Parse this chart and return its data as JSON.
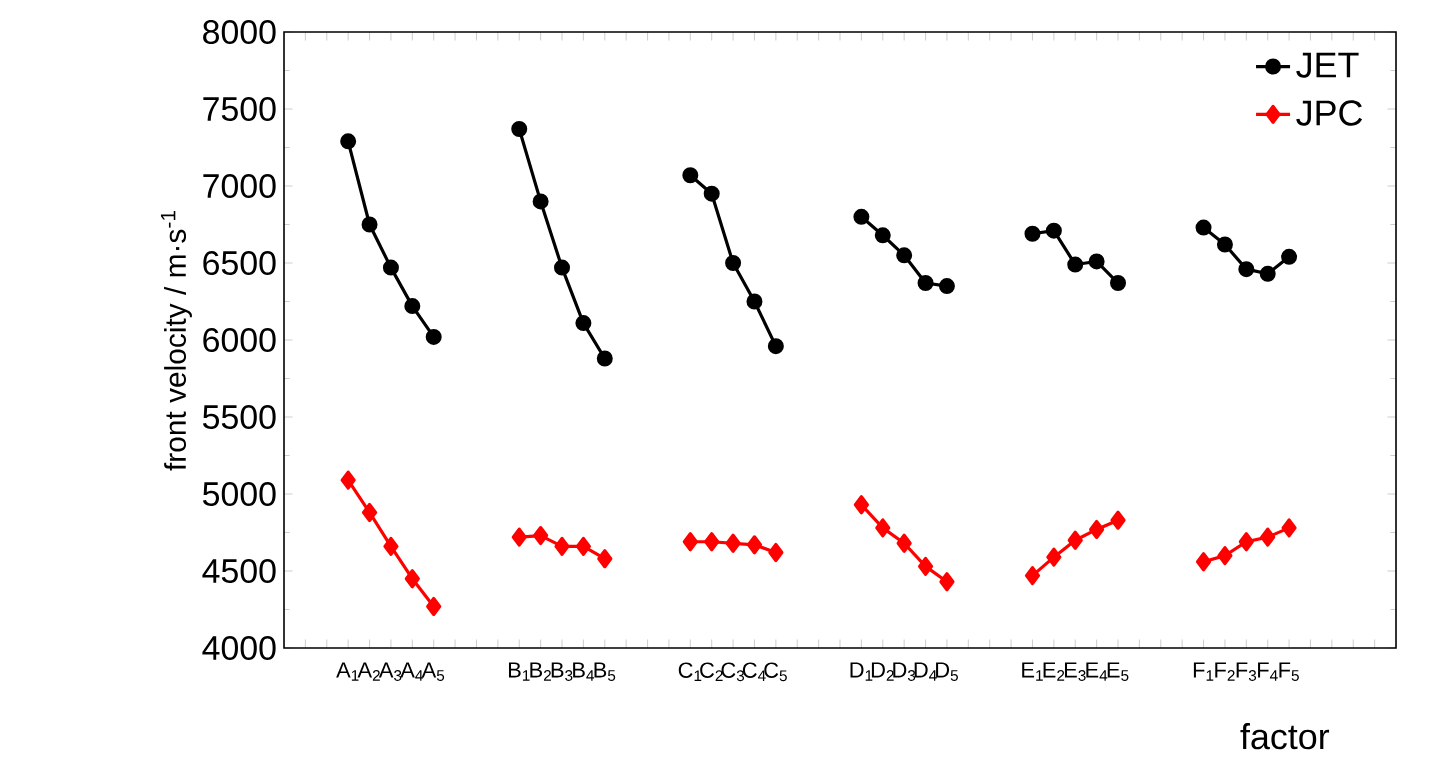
{
  "chart_data": {
    "type": "line",
    "xlabel": "factor",
    "ylabel": "front velocity / m·s$^{-1}$",
    "categories": [
      null,
      null,
      "A$_{1}$",
      "A$_{2}$",
      "A$_{3}$",
      "A$_{4}$",
      "A$_{5}$",
      null,
      null,
      null,
      "B$_{1}$",
      "B$_{2}$",
      "B$_{3}$",
      "B$_{4}$",
      "B$_{5}$",
      null,
      null,
      null,
      "C$_{1}$",
      "C$_{2}$",
      "C$_{3}$",
      "C$_{4}$",
      "C$_{5}$",
      null,
      null,
      null,
      "D$_{1}$",
      "D$_{2}$",
      "D$_{3}$",
      "D$_{4}$",
      "D$_{5}$",
      null,
      null,
      null,
      "E$_{1}$",
      "E$_{2}$",
      "E$_{3}$",
      "E$_{4}$",
      "E$_{5}$",
      null,
      null,
      null,
      "F$_{1}$",
      "F$_{2}$",
      "F$_{3}$",
      "F$_{4}$",
      "F$_{5}$",
      null,
      null,
      null,
      null
    ],
    "ylim": [
      4000,
      8000
    ],
    "yticks": [
      4000,
      4500,
      5000,
      5500,
      6000,
      6500,
      7000,
      7500,
      8000
    ],
    "legend": "top right",
    "grid": false,
    "series": [
      {
        "name": "JET",
        "color": "#000000",
        "marker": "circle",
        "values": [
          null,
          null,
          7290,
          6750,
          6470,
          6220,
          6020,
          null,
          null,
          null,
          7370,
          6900,
          6470,
          6110,
          5880,
          null,
          null,
          null,
          7070,
          6950,
          6500,
          6250,
          5960,
          null,
          null,
          null,
          6800,
          6680,
          6550,
          6370,
          6350,
          null,
          null,
          null,
          6690,
          6710,
          6490,
          6510,
          6370,
          null,
          null,
          null,
          6730,
          6620,
          6460,
          6430,
          6540,
          null,
          null,
          null,
          null
        ]
      },
      {
        "name": "JPC",
        "color": "#ff0000",
        "marker": "diamond",
        "values": [
          null,
          null,
          5090,
          4880,
          4660,
          4450,
          4270,
          null,
          null,
          null,
          4720,
          4730,
          4660,
          4660,
          4580,
          null,
          null,
          null,
          4690,
          4690,
          4680,
          4670,
          4620,
          null,
          null,
          null,
          4930,
          4780,
          4680,
          4530,
          4430,
          null,
          null,
          null,
          4470,
          4590,
          4700,
          4770,
          4830,
          null,
          null,
          null,
          4560,
          4600,
          4690,
          4720,
          4780,
          null,
          null,
          null,
          null
        ]
      }
    ]
  }
}
